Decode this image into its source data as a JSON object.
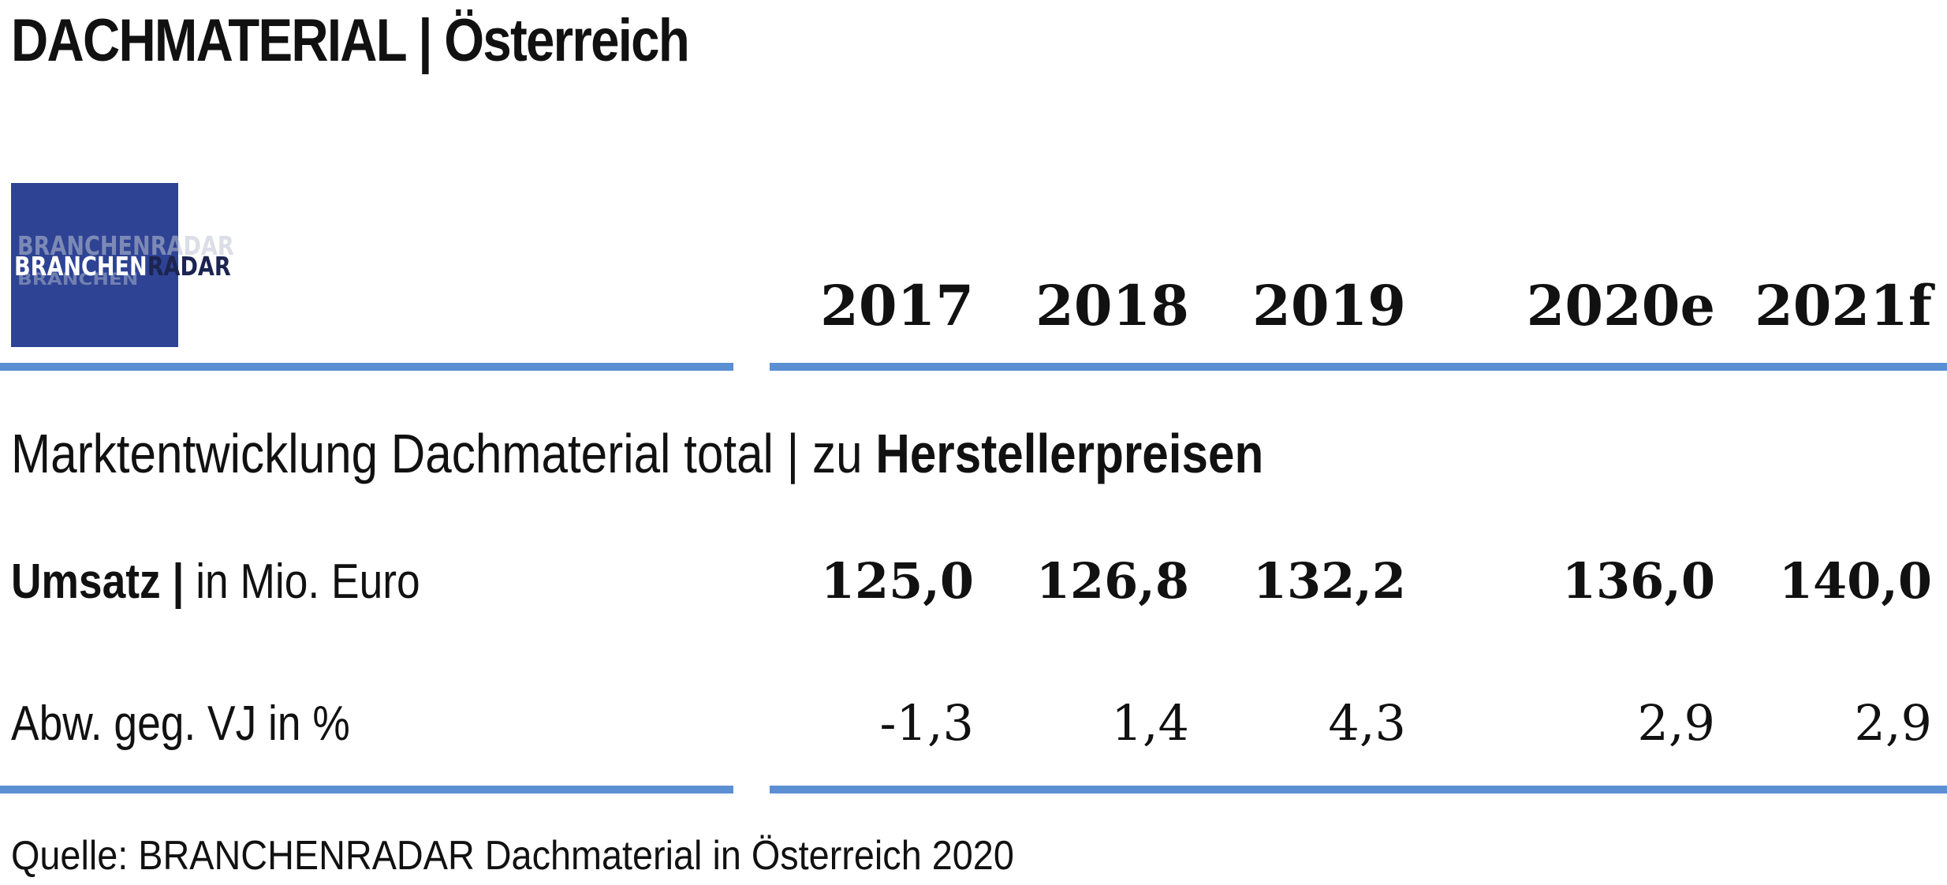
{
  "title": {
    "main": "DACHMATERIAL",
    "separator": "|",
    "country": "Österreich"
  },
  "logo": {
    "part1": "BRANCHEN",
    "part2": "RADAR",
    "brand_color": "#2e4394"
  },
  "colors": {
    "rule": "#5b8fd3"
  },
  "subtitle": {
    "plain": "Marktentwicklung Dachmaterial total | zu ",
    "bold": "Herstellerpreisen"
  },
  "rows": {
    "revenue": {
      "label_bold": "Umsatz |",
      "label_plain": " in Mio. Euro"
    },
    "change": {
      "label": "Abw. geg. VJ in %"
    }
  },
  "source": "Quelle: BRANCHENRADAR Dachmaterial in Österreich 2020",
  "chart_data": {
    "type": "table",
    "title": "DACHMATERIAL | Österreich",
    "subtitle": "Marktentwicklung Dachmaterial total | zu Herstellerpreisen",
    "columns": [
      "2017",
      "2018",
      "2019",
      "2020e",
      "2021f"
    ],
    "series": [
      {
        "name": "Umsatz | in Mio. Euro",
        "values": [
          125.0,
          126.8,
          132.2,
          136.0,
          140.0
        ],
        "display": [
          "125,0",
          "126,8",
          "132,2",
          "136,0",
          "140,0"
        ]
      },
      {
        "name": "Abw. geg. VJ in %",
        "values": [
          -1.3,
          1.4,
          4.3,
          2.9,
          2.9
        ],
        "display": [
          "-1,3",
          "1,4",
          "4,3",
          "2,9",
          "2,9"
        ]
      }
    ]
  }
}
